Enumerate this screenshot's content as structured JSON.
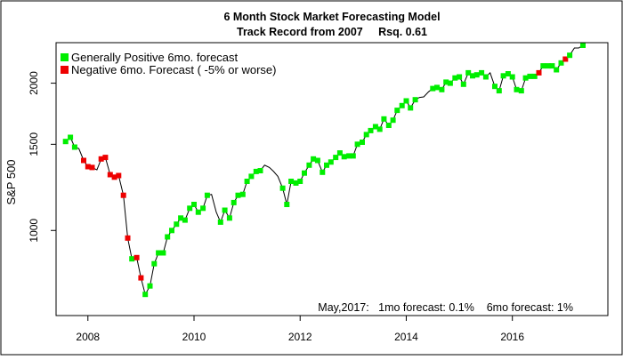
{
  "chart_data": {
    "type": "line",
    "title": "6 Month Stock Market Forecasting Model",
    "subtitle": "Track Record from 2007     Rsq. 0.61",
    "xlabel": "",
    "ylabel": "S&P 500",
    "y_scale": "log",
    "xlim": [
      2007.4,
      2017.8
    ],
    "ylim": [
      670,
      2420
    ],
    "x_ticks": [
      2008,
      2010,
      2012,
      2014,
      2016
    ],
    "y_ticks": [
      1000,
      1500,
      2000
    ],
    "legend": {
      "position": "top-left",
      "entries": [
        {
          "label": "Generally Positive 6mo. forecast",
          "color": "#00ee00"
        },
        {
          "label": "Negative 6mo. Forecast ( -5% or worse)",
          "color": "#ee0000"
        }
      ]
    },
    "annotation": "May,2017:   1mo forecast: 0.1%    6mo forecast: 1%",
    "colors": {
      "positive": "#00ee00",
      "negative": "#ee0000",
      "line": "#000000"
    },
    "series": [
      {
        "name": "S&P 500 monthly",
        "points": [
          [
            2007.58,
            1520,
            "pos"
          ],
          [
            2007.67,
            1550,
            "pos"
          ],
          [
            2007.75,
            1480,
            "pos"
          ],
          [
            2007.83,
            1470,
            null
          ],
          [
            2007.92,
            1390,
            "neg"
          ],
          [
            2008.0,
            1350,
            "neg"
          ],
          [
            2008.08,
            1345,
            "neg"
          ],
          [
            2008.17,
            1330,
            null
          ],
          [
            2008.25,
            1400,
            "neg"
          ],
          [
            2008.33,
            1410,
            "neg"
          ],
          [
            2008.42,
            1300,
            "neg"
          ],
          [
            2008.5,
            1285,
            "neg"
          ],
          [
            2008.58,
            1295,
            "neg"
          ],
          [
            2008.67,
            1180,
            "neg"
          ],
          [
            2008.75,
            965,
            "neg"
          ],
          [
            2008.83,
            875,
            "pos"
          ],
          [
            2008.92,
            880,
            "neg"
          ],
          [
            2009.0,
            800,
            "neg"
          ],
          [
            2009.08,
            740,
            "pos"
          ],
          [
            2009.17,
            770,
            "pos"
          ],
          [
            2009.25,
            855,
            "pos"
          ],
          [
            2009.33,
            900,
            "pos"
          ],
          [
            2009.42,
            900,
            "pos"
          ],
          [
            2009.5,
            970,
            "pos"
          ],
          [
            2009.58,
            1000,
            "pos"
          ],
          [
            2009.67,
            1030,
            "pos"
          ],
          [
            2009.75,
            1060,
            "pos"
          ],
          [
            2009.83,
            1050,
            "pos"
          ],
          [
            2009.92,
            1110,
            "pos"
          ],
          [
            2010.0,
            1130,
            "pos"
          ],
          [
            2010.08,
            1090,
            "pos"
          ],
          [
            2010.17,
            1110,
            "pos"
          ],
          [
            2010.25,
            1180,
            "pos"
          ],
          [
            2010.33,
            1185,
            null
          ],
          [
            2010.42,
            1090,
            null
          ],
          [
            2010.5,
            1040,
            "pos"
          ],
          [
            2010.58,
            1100,
            "pos"
          ],
          [
            2010.67,
            1060,
            "pos"
          ],
          [
            2010.75,
            1140,
            "pos"
          ],
          [
            2010.83,
            1180,
            "pos"
          ],
          [
            2010.92,
            1185,
            "pos"
          ],
          [
            2011.0,
            1260,
            "pos"
          ],
          [
            2011.08,
            1290,
            "pos"
          ],
          [
            2011.17,
            1320,
            "pos"
          ],
          [
            2011.25,
            1325,
            "pos"
          ],
          [
            2011.33,
            1360,
            null
          ],
          [
            2011.42,
            1345,
            null
          ],
          [
            2011.5,
            1320,
            null
          ],
          [
            2011.58,
            1290,
            null
          ],
          [
            2011.67,
            1220,
            "pos"
          ],
          [
            2011.75,
            1130,
            "pos"
          ],
          [
            2011.83,
            1260,
            "pos"
          ],
          [
            2011.92,
            1250,
            "pos"
          ],
          [
            2012.0,
            1260,
            "pos"
          ],
          [
            2012.08,
            1310,
            "pos"
          ],
          [
            2012.17,
            1360,
            "pos"
          ],
          [
            2012.25,
            1400,
            "pos"
          ],
          [
            2012.33,
            1390,
            "pos"
          ],
          [
            2012.42,
            1315,
            "pos"
          ],
          [
            2012.5,
            1360,
            "pos"
          ],
          [
            2012.58,
            1380,
            "pos"
          ],
          [
            2012.67,
            1410,
            "pos"
          ],
          [
            2012.75,
            1440,
            "pos"
          ],
          [
            2012.83,
            1415,
            "pos"
          ],
          [
            2012.92,
            1420,
            "pos"
          ],
          [
            2013.0,
            1420,
            "pos"
          ],
          [
            2013.08,
            1500,
            "pos"
          ],
          [
            2013.17,
            1515,
            "pos"
          ],
          [
            2013.25,
            1570,
            "pos"
          ],
          [
            2013.33,
            1600,
            "pos"
          ],
          [
            2013.42,
            1630,
            "pos"
          ],
          [
            2013.5,
            1610,
            "pos"
          ],
          [
            2013.58,
            1690,
            "pos"
          ],
          [
            2013.67,
            1640,
            "pos"
          ],
          [
            2013.75,
            1680,
            "pos"
          ],
          [
            2013.83,
            1760,
            "pos"
          ],
          [
            2013.92,
            1800,
            "pos"
          ],
          [
            2014.0,
            1840,
            "pos"
          ],
          [
            2014.08,
            1780,
            "pos"
          ],
          [
            2014.17,
            1850,
            "pos"
          ],
          [
            2014.25,
            1870,
            null
          ],
          [
            2014.33,
            1875,
            null
          ],
          [
            2014.42,
            1920,
            null
          ],
          [
            2014.5,
            1950,
            "pos"
          ],
          [
            2014.58,
            1960,
            "pos"
          ],
          [
            2014.67,
            1940,
            "pos"
          ],
          [
            2014.75,
            2010,
            "pos"
          ],
          [
            2014.83,
            2000,
            "pos"
          ],
          [
            2014.92,
            2050,
            "pos"
          ],
          [
            2015.0,
            2060,
            "pos"
          ],
          [
            2015.08,
            1990,
            "pos"
          ],
          [
            2015.17,
            2100,
            "pos"
          ],
          [
            2015.25,
            2070,
            "pos"
          ],
          [
            2015.33,
            2080,
            "pos"
          ],
          [
            2015.42,
            2100,
            "pos"
          ],
          [
            2015.5,
            2060,
            "pos"
          ],
          [
            2015.58,
            2100,
            null
          ],
          [
            2015.67,
            1970,
            "pos"
          ],
          [
            2015.75,
            1930,
            "pos"
          ],
          [
            2015.83,
            2070,
            "pos"
          ],
          [
            2015.92,
            2090,
            "pos"
          ],
          [
            2016.0,
            2060,
            "pos"
          ],
          [
            2016.08,
            1940,
            "pos"
          ],
          [
            2016.17,
            1930,
            "pos"
          ],
          [
            2016.25,
            2050,
            "pos"
          ],
          [
            2016.33,
            2065,
            "pos"
          ],
          [
            2016.42,
            2065,
            "pos"
          ],
          [
            2016.5,
            2100,
            "neg"
          ],
          [
            2016.58,
            2170,
            "pos"
          ],
          [
            2016.67,
            2170,
            "pos"
          ],
          [
            2016.75,
            2170,
            "pos"
          ],
          [
            2016.83,
            2130,
            "pos"
          ],
          [
            2016.92,
            2200,
            "pos"
          ],
          [
            2017.0,
            2240,
            "neg"
          ],
          [
            2017.08,
            2280,
            "pos"
          ],
          [
            2017.17,
            2360,
            null
          ],
          [
            2017.25,
            2360,
            null
          ],
          [
            2017.33,
            2390,
            "pos"
          ]
        ]
      }
    ]
  }
}
